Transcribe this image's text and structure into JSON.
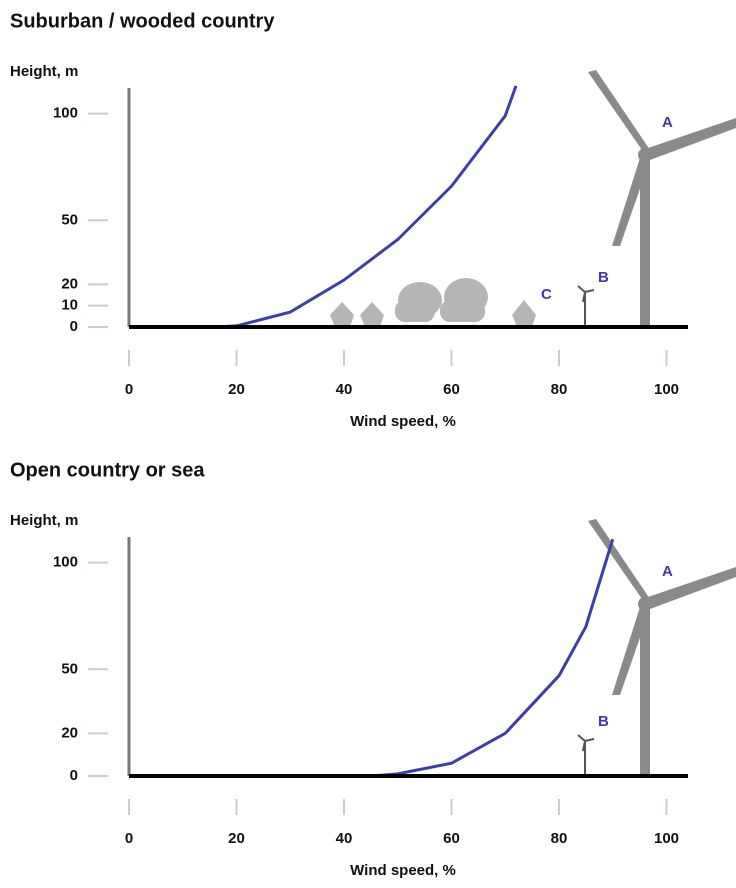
{
  "chart_data": [
    {
      "type": "line",
      "title": "Suburban / wooded country",
      "ylabel": "Height, m",
      "xlabel": "Wind speed, %",
      "xlim": [
        0,
        104
      ],
      "ylim": [
        0,
        112
      ],
      "xticks": [
        0,
        20,
        40,
        60,
        80,
        100
      ],
      "yticks": [
        0,
        10,
        20,
        50,
        100
      ],
      "series": [
        {
          "color": "#3b3fa8",
          "x": [
            16,
            20,
            30,
            40,
            50,
            60,
            70,
            72
          ],
          "values": [
            0,
            0.5,
            7,
            22,
            41,
            66,
            99,
            113
          ]
        }
      ],
      "annotations": [
        "A",
        "B",
        "C"
      ]
    },
    {
      "type": "line",
      "title": "Open country or sea",
      "ylabel": "Height, m",
      "xlabel": "Wind speed, %",
      "xlim": [
        0,
        104
      ],
      "ylim": [
        0,
        112
      ],
      "xticks": [
        0,
        20,
        40,
        60,
        80,
        100
      ],
      "yticks": [
        0,
        20,
        50,
        100
      ],
      "series": [
        {
          "color": "#3b3fa8",
          "x": [
            45,
            50,
            60,
            70,
            80,
            85,
            90
          ],
          "values": [
            0,
            1,
            6,
            20,
            47,
            70,
            111
          ]
        }
      ],
      "annotations": [
        "A",
        "B"
      ]
    }
  ]
}
